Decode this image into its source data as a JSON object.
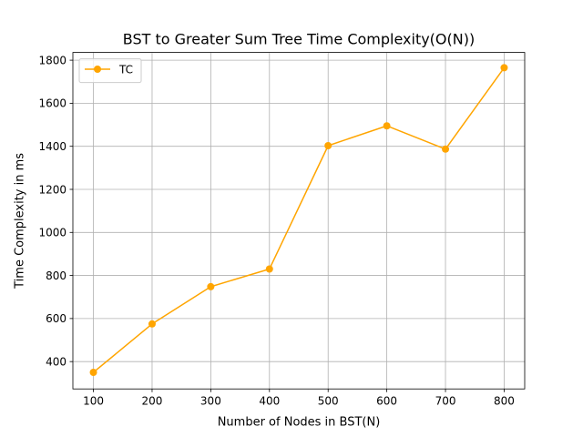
{
  "chart_data": {
    "type": "line",
    "title": "BST to Greater Sum Tree Time Complexity(O(N))",
    "xlabel": "Number of Nodes in BST(N)",
    "ylabel": "Time Complexity in ms",
    "x": [
      100,
      200,
      300,
      400,
      500,
      600,
      700,
      800
    ],
    "series": [
      {
        "name": "TC",
        "color": "#ffa500",
        "marker": "circle",
        "values": [
          350,
          575,
          748,
          830,
          1403,
          1495,
          1387,
          1765
        ]
      }
    ],
    "xlim": [
      65,
      835
    ],
    "ylim": [
      273,
      1836
    ],
    "xticks": [
      100,
      200,
      300,
      400,
      500,
      600,
      700,
      800
    ],
    "yticks": [
      400,
      600,
      800,
      1000,
      1200,
      1400,
      1600,
      1800
    ],
    "grid": true,
    "legend_position": "upper-left"
  }
}
